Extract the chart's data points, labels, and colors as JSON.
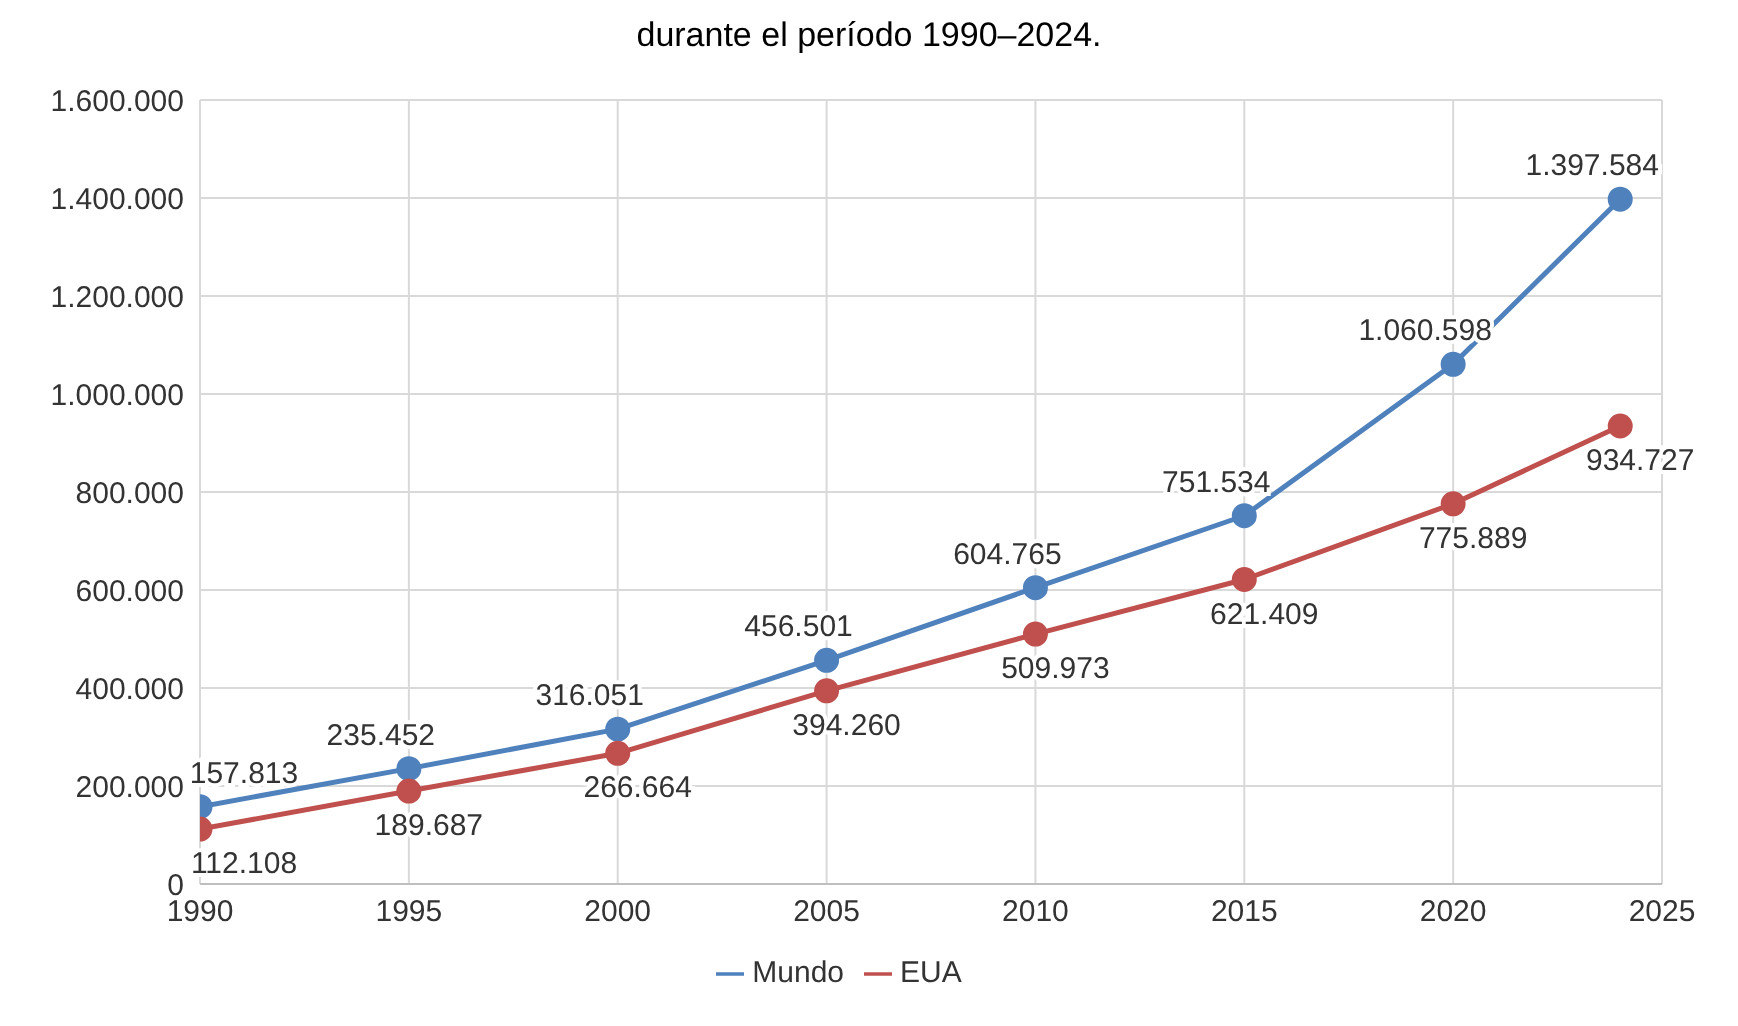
{
  "chart_data": {
    "type": "line",
    "title": "durante el período 1990–2024.",
    "x": [
      1990,
      1995,
      2000,
      2005,
      2010,
      2015,
      2020,
      2024
    ],
    "series": [
      {
        "name": "Mundo",
        "color": "#4f81bd",
        "values": [
          157813,
          235452,
          316051,
          456501,
          604765,
          751534,
          1060598,
          1397584
        ],
        "value_labels": [
          "157.813",
          "235.452",
          "316.051",
          "456.501",
          "604.765",
          "751.534",
          "1.060.598",
          "1.397.584"
        ]
      },
      {
        "name": "EUA",
        "color": "#c0504d",
        "values": [
          112108,
          189687,
          266664,
          394260,
          509973,
          621409,
          775889,
          934727
        ],
        "value_labels": [
          "112.108",
          "189.687",
          "266.664",
          "394.260",
          "509.973",
          "621.409",
          "775.889",
          "934.727"
        ]
      }
    ],
    "xlim": [
      1990,
      2025
    ],
    "xticks": [
      1990,
      1995,
      2000,
      2005,
      2010,
      2015,
      2020,
      2025
    ],
    "ylim": [
      0,
      1600000
    ],
    "yticks": [
      0,
      {
        "value": 200000,
        "label": "200.000"
      },
      {
        "value": 400000,
        "label": "400.000"
      },
      {
        "value": 600000,
        "label": "600.000"
      },
      {
        "value": 800000,
        "label": "800.000"
      },
      {
        "value": 1000000,
        "label": "1.000.000"
      },
      {
        "value": 1200000,
        "label": "1.200.000"
      },
      {
        "value": 1400000,
        "label": "1.400.000"
      },
      {
        "value": 1600000,
        "label": "1.600.000"
      }
    ],
    "grid": true,
    "legend": "bottom",
    "marker": "circle",
    "line_style": "solid"
  }
}
